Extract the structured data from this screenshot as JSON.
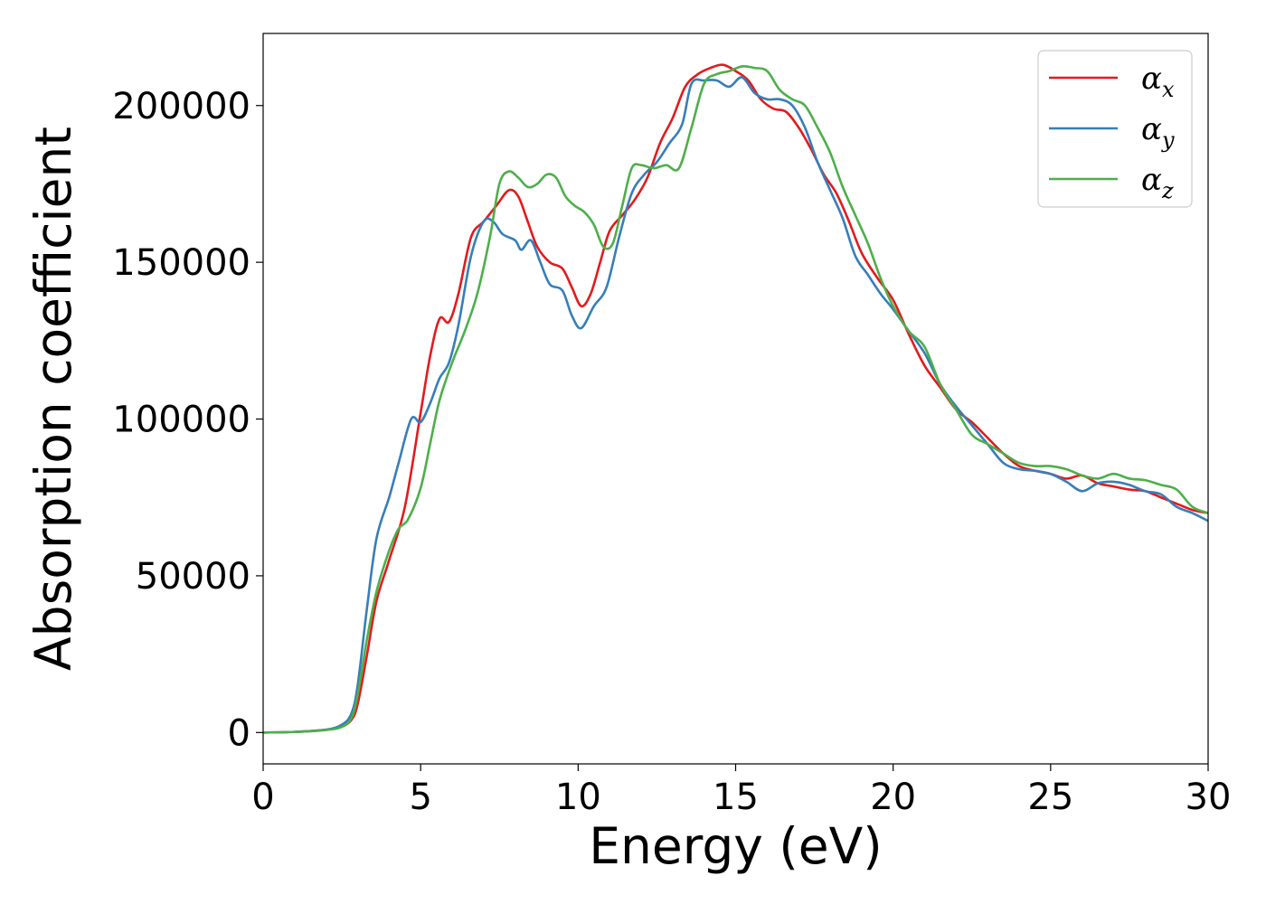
{
  "chart_data": {
    "type": "line",
    "title": "",
    "xlabel": "Energy (eV)",
    "ylabel": "Absorption coefficient",
    "xlim": [
      0,
      30
    ],
    "ylim": [
      -10000,
      223000
    ],
    "xticks": [
      0,
      5,
      10,
      15,
      20,
      25,
      30
    ],
    "yticks": [
      0,
      50000,
      100000,
      150000,
      200000
    ],
    "grid": false,
    "legend": "top-right",
    "series": [
      {
        "name": "αx",
        "symbol": "α",
        "subscript": "x",
        "color": "#e41a1c",
        "x": [
          0,
          1,
          2,
          2.5,
          2.8,
          3.0,
          3.3,
          3.6,
          4.0,
          4.5,
          5.0,
          5.3,
          5.6,
          5.9,
          6.2,
          6.6,
          7.0,
          7.4,
          7.8,
          8.1,
          8.4,
          8.7,
          9.1,
          9.5,
          9.8,
          10.1,
          10.4,
          10.7,
          11.0,
          11.4,
          11.8,
          12.2,
          12.6,
          13.0,
          13.4,
          13.8,
          14.2,
          14.6,
          15.0,
          15.4,
          15.8,
          16.2,
          16.6,
          17.0,
          17.4,
          17.8,
          18.2,
          18.6,
          19.0,
          19.5,
          20.0,
          20.5,
          21.0,
          21.5,
          22.0,
          22.5,
          23.0,
          23.5,
          24.0,
          24.5,
          25.0,
          25.5,
          26.0,
          26.5,
          27.0,
          27.5,
          28.0,
          28.5,
          29.0,
          29.5,
          30.0
        ],
        "y": [
          0,
          200,
          900,
          2000,
          4000,
          9000,
          25000,
          42000,
          55000,
          72000,
          102000,
          120000,
          132000,
          131000,
          140000,
          158000,
          163000,
          168000,
          173000,
          171000,
          163000,
          155000,
          150000,
          148000,
          142000,
          136000,
          140000,
          150000,
          160000,
          165000,
          170000,
          177000,
          188000,
          196000,
          206000,
          210000,
          212000,
          213000,
          211000,
          208000,
          202000,
          199000,
          198000,
          193000,
          186000,
          178000,
          172000,
          163000,
          153000,
          145000,
          138000,
          127000,
          117000,
          110000,
          103000,
          99000,
          94000,
          89000,
          85000,
          83500,
          82500,
          81000,
          82000,
          79500,
          78500,
          77500,
          77000,
          75000,
          73000,
          71000,
          70000
        ]
      },
      {
        "name": "αy",
        "symbol": "α",
        "subscript": "y",
        "color": "#377eb8",
        "x": [
          0,
          1,
          2,
          2.5,
          2.8,
          3.0,
          3.3,
          3.6,
          4.0,
          4.3,
          4.7,
          5.0,
          5.3,
          5.6,
          5.9,
          6.2,
          6.6,
          7.0,
          7.3,
          7.6,
          8.0,
          8.2,
          8.5,
          8.8,
          9.1,
          9.5,
          9.8,
          10.1,
          10.5,
          10.9,
          11.3,
          11.7,
          12.1,
          12.5,
          12.9,
          13.3,
          13.6,
          14.0,
          14.4,
          14.8,
          15.2,
          15.6,
          16.0,
          16.4,
          16.8,
          17.2,
          17.6,
          18.0,
          18.4,
          18.8,
          19.2,
          19.6,
          20.0,
          20.5,
          21.0,
          21.5,
          22.0,
          22.5,
          23.0,
          23.5,
          24.0,
          24.5,
          25.0,
          25.5,
          26.0,
          26.5,
          27.0,
          27.5,
          28.0,
          28.5,
          29.0,
          29.5,
          30.0
        ],
        "y": [
          0,
          200,
          900,
          2500,
          6000,
          15000,
          40000,
          62000,
          75000,
          86000,
          100000,
          99000,
          105000,
          113000,
          118000,
          130000,
          152000,
          163000,
          163000,
          159000,
          157000,
          154000,
          157000,
          150000,
          143000,
          141000,
          133000,
          129000,
          136000,
          142000,
          158000,
          172000,
          178000,
          182000,
          188000,
          194000,
          207000,
          208000,
          208000,
          206000,
          209000,
          204000,
          202000,
          202000,
          200000,
          193000,
          182000,
          173000,
          164000,
          152000,
          146000,
          140000,
          135000,
          128000,
          121000,
          111000,
          104000,
          98000,
          92000,
          86000,
          84000,
          83500,
          82500,
          80000,
          77000,
          79500,
          80000,
          79000,
          77000,
          76000,
          72000,
          70000,
          67500
        ]
      },
      {
        "name": "αz",
        "symbol": "α",
        "subscript": "z",
        "color": "#4daf4a",
        "x": [
          0,
          1,
          2,
          2.5,
          2.8,
          3.0,
          3.3,
          3.6,
          4.0,
          4.3,
          4.6,
          5.0,
          5.3,
          5.6,
          6.0,
          6.4,
          6.8,
          7.2,
          7.5,
          7.8,
          8.1,
          8.4,
          8.7,
          9.0,
          9.3,
          9.6,
          9.9,
          10.2,
          10.5,
          10.8,
          11.1,
          11.4,
          11.7,
          12.0,
          12.4,
          12.8,
          13.2,
          13.6,
          14.0,
          14.4,
          14.8,
          15.2,
          15.6,
          16.0,
          16.4,
          16.8,
          17.2,
          17.6,
          18.0,
          18.4,
          18.8,
          19.2,
          19.6,
          20.0,
          20.5,
          21.0,
          21.5,
          22.0,
          22.5,
          23.0,
          23.5,
          24.0,
          24.5,
          25.0,
          25.5,
          26.0,
          26.5,
          27.0,
          27.5,
          28.0,
          28.5,
          29.0,
          29.5,
          30.0
        ],
        "y": [
          0,
          200,
          800,
          1800,
          4500,
          12000,
          30000,
          45000,
          58000,
          65000,
          68000,
          78000,
          92000,
          106000,
          118000,
          128000,
          140000,
          158000,
          175000,
          179000,
          177000,
          174000,
          175000,
          178000,
          177000,
          171000,
          168000,
          166000,
          162000,
          155000,
          156000,
          168000,
          180000,
          181000,
          180000,
          181000,
          180000,
          193000,
          207000,
          210000,
          211000,
          212500,
          212000,
          211000,
          205000,
          202000,
          200000,
          193000,
          185000,
          174000,
          165000,
          156000,
          145000,
          136000,
          128000,
          123000,
          111000,
          103000,
          95000,
          92000,
          89000,
          86000,
          85000,
          85000,
          84000,
          82000,
          81000,
          82500,
          81000,
          80500,
          79000,
          77500,
          72000,
          70000
        ]
      }
    ]
  }
}
